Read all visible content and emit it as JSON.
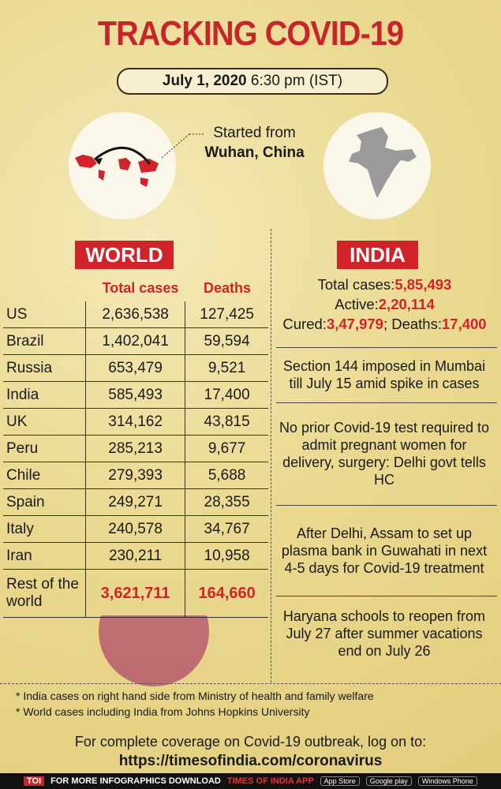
{
  "header": {
    "title": "TRACKING COVID-19",
    "date": "July 1, 2020",
    "time": "6:30 pm (IST)"
  },
  "origin": {
    "line1": "Started from",
    "line2": "Wuhan, China"
  },
  "world": {
    "heading": "WORLD",
    "columns": [
      "Total cases",
      "Deaths"
    ],
    "rows": [
      [
        "US",
        "2,636,538",
        "127,425"
      ],
      [
        "Brazil",
        "1,402,041",
        "59,594"
      ],
      [
        "Russia",
        "653,479",
        "9,521"
      ],
      [
        "India",
        "585,493",
        "17,400"
      ],
      [
        "UK",
        "314,162",
        "43,815"
      ],
      [
        "Peru",
        "285,213",
        "9,677"
      ],
      [
        "Chile",
        "279,393",
        "5,688"
      ],
      [
        "Spain",
        "249,271",
        "28,355"
      ],
      [
        "Italy",
        "240,578",
        "34,767"
      ],
      [
        "Iran",
        "230,211",
        "10,958"
      ],
      [
        "Rest of the world",
        "3,621,711",
        "164,660"
      ]
    ]
  },
  "india": {
    "heading": "INDIA",
    "stats": [
      {
        "label": "Total cases:",
        "value": "5,85,493"
      },
      {
        "label": "Active:",
        "value": "2,20,114"
      },
      {
        "label": "Cured:",
        "value": "3,47,979"
      },
      {
        "label": "; Deaths:",
        "value": "17,400"
      }
    ],
    "news": [
      "Section 144 imposed in Mumbai till July 15 amid spike in cases",
      "No prior Covid-19 test required to admit pregnant women for delivery, surgery: Delhi govt tells HC",
      "After Delhi, Assam to set up plasma bank in Guwahati in next 4-5 days for Covid-19 treatment",
      "Haryana schools to reopen from July 27 after summer vacations end on July 26"
    ]
  },
  "footnotes": [
    "* India cases on right hand side from Ministry of health and family welfare",
    "* World cases including India from Johns Hopkins University"
  ],
  "coverage": {
    "text": "For complete coverage on Covid-19 outbreak, log on to:",
    "url": "https://timesofindia.com/coronavirus"
  },
  "footer": {
    "brand": "TOI",
    "text": "FOR MORE INFOGRAPHICS DOWNLOAD",
    "app": "TIMES OF INDIA APP",
    "stores": [
      "App Store",
      "Google play",
      "Windows Phone"
    ]
  }
}
